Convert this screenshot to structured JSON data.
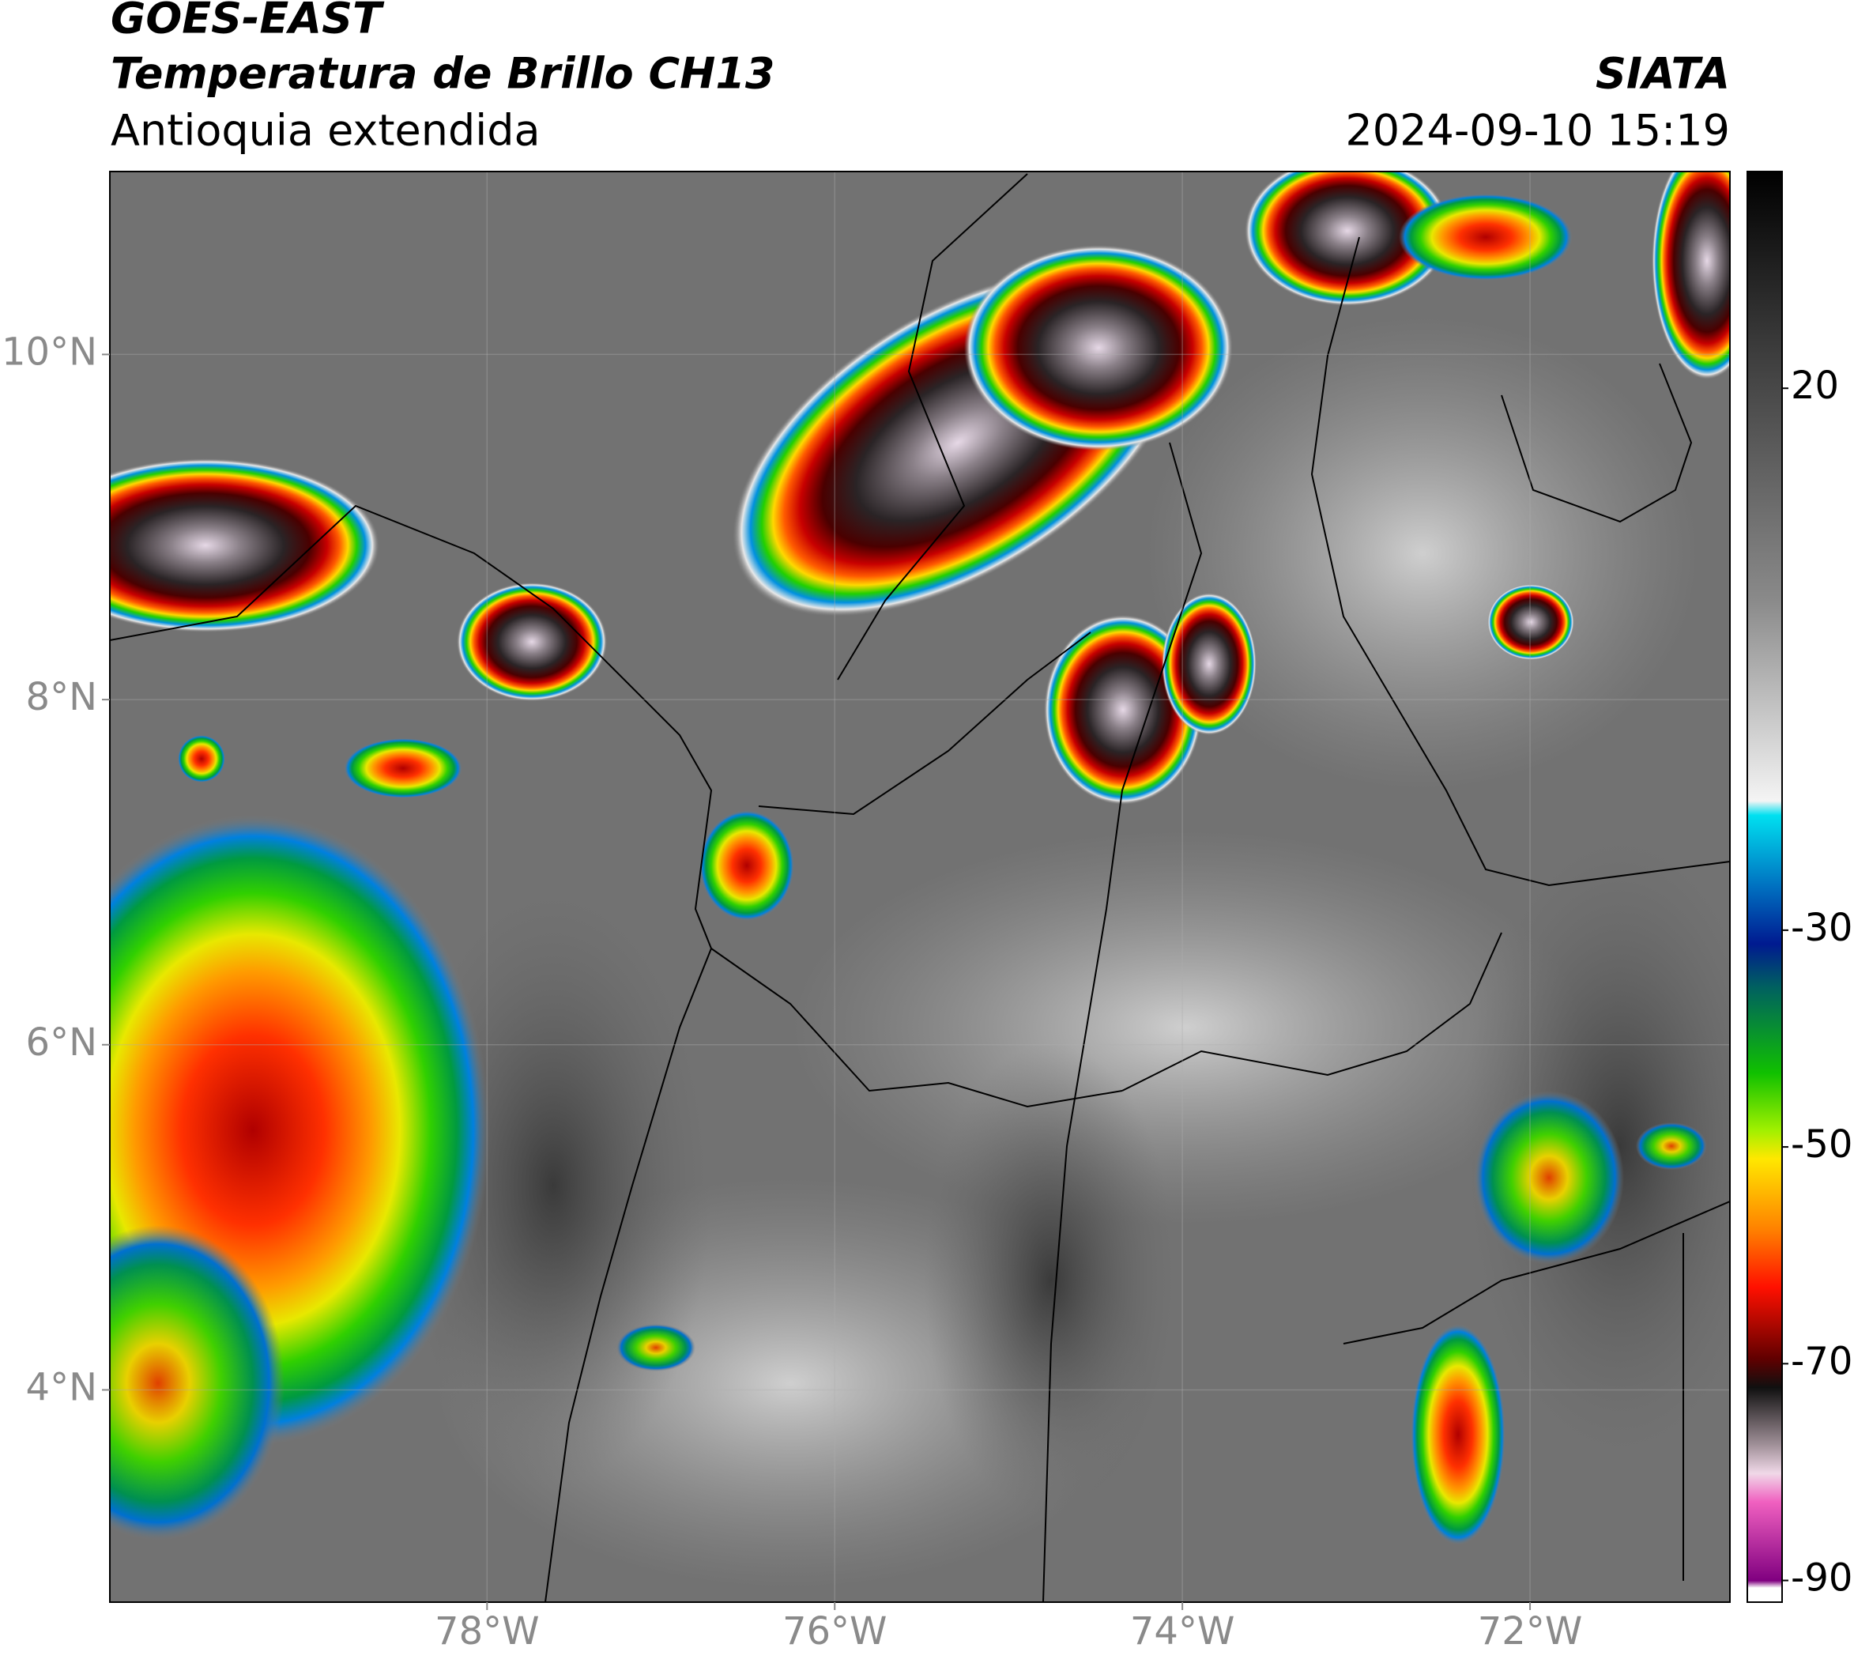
{
  "header": {
    "satellite": "GOES-EAST",
    "title": "Temperatura de Brillo CH13",
    "region": "Antioquia extendida",
    "source": "SIATA",
    "datetime": "2024-09-10 15:19"
  },
  "map": {
    "xlim": [
      -80.17,
      -70.85
    ],
    "ylim": [
      2.77,
      11.06
    ],
    "xticks": [
      {
        "value": -78,
        "label": "78°W"
      },
      {
        "value": -76,
        "label": "76°W"
      },
      {
        "value": -74,
        "label": "74°W"
      },
      {
        "value": -72,
        "label": "72°W"
      }
    ],
    "yticks": [
      {
        "value": 4,
        "label": "4°N"
      },
      {
        "value": 6,
        "label": "6°N"
      },
      {
        "value": 8,
        "label": "8°N"
      },
      {
        "value": 10,
        "label": "10°N"
      }
    ],
    "grid": true
  },
  "colorbar": {
    "clim": [
      -92,
      40
    ],
    "ticks": [
      20,
      -30,
      -50,
      -70,
      -90
    ]
  }
}
